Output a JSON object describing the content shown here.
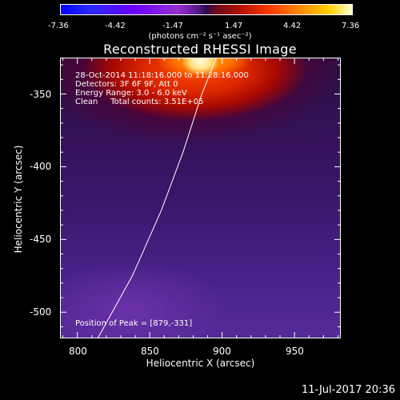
{
  "colorbar": {
    "ticks": [
      "-7.36",
      "-4.42",
      "-1.47",
      "1.47",
      "4.42",
      "7.36"
    ],
    "units": "(photons cm⁻² s⁻¹ asec⁻²)"
  },
  "chart_data": {
    "type": "heatmap",
    "title": "Reconstructed RHESSI Image",
    "xlabel": "Heliocentric X (arcsec)",
    "ylabel": "Heliocentric Y (arcsec)",
    "x_ticks": [
      "800",
      "850",
      "900",
      "950"
    ],
    "y_ticks": [
      "-350",
      "-400",
      "-450",
      "-500"
    ],
    "xlim": [
      788,
      982
    ],
    "ylim": [
      -518,
      -325
    ],
    "colorbar_range": [
      -7.36,
      7.36
    ],
    "peak": [
      879,
      -331
    ],
    "limb_curve": [
      [
        814,
        -518
      ],
      [
        838,
        -475
      ],
      [
        858,
        -430
      ],
      [
        873,
        -390
      ],
      [
        886,
        -350
      ],
      [
        896,
        -325
      ]
    ]
  },
  "info": {
    "line1": "28-Oct-2014 11:18:16.000 to 11:28:16.000",
    "line2": "Detectors: 3F 6F 9F, Att 0",
    "line3": "Energy Range: 3.0 - 6.0 keV",
    "line4": "Clean     Total counts: 3.51E+05",
    "peak": "Position of Peak = [879,-331]"
  },
  "footer": {
    "timestamp": "11-Jul-2017 20:36"
  }
}
